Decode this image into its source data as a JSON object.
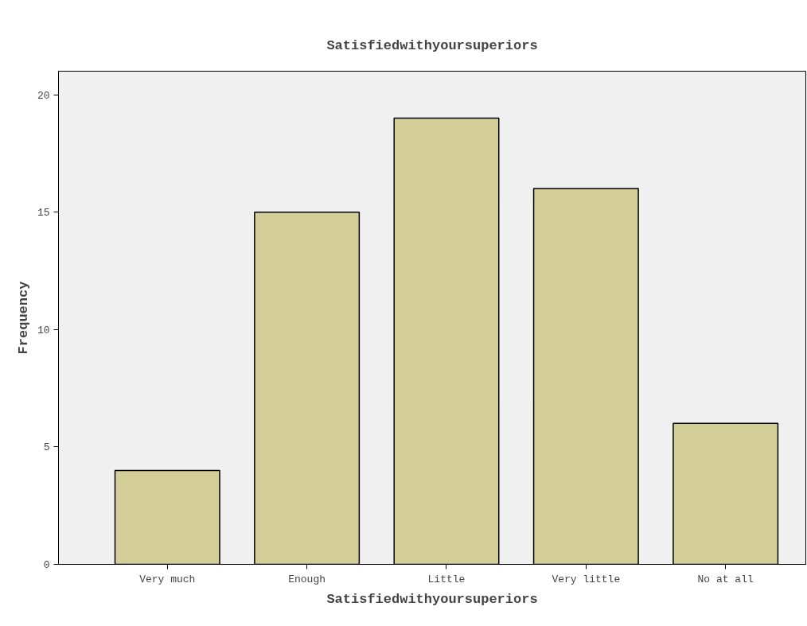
{
  "chart_data": {
    "type": "bar",
    "title": "Satisfiedwithyoursuperiors",
    "xlabel": "Satisfiedwithyoursuperiors",
    "ylabel": "Frequency",
    "categories": [
      "Very much",
      "Enough",
      "Little",
      "Very little",
      "No at all"
    ],
    "values": [
      4,
      15,
      19,
      16,
      6
    ],
    "color": "#d3cd98",
    "ylim": [
      0,
      21
    ],
    "yticks": [
      0,
      5,
      10,
      15,
      20
    ],
    "grid": false
  }
}
